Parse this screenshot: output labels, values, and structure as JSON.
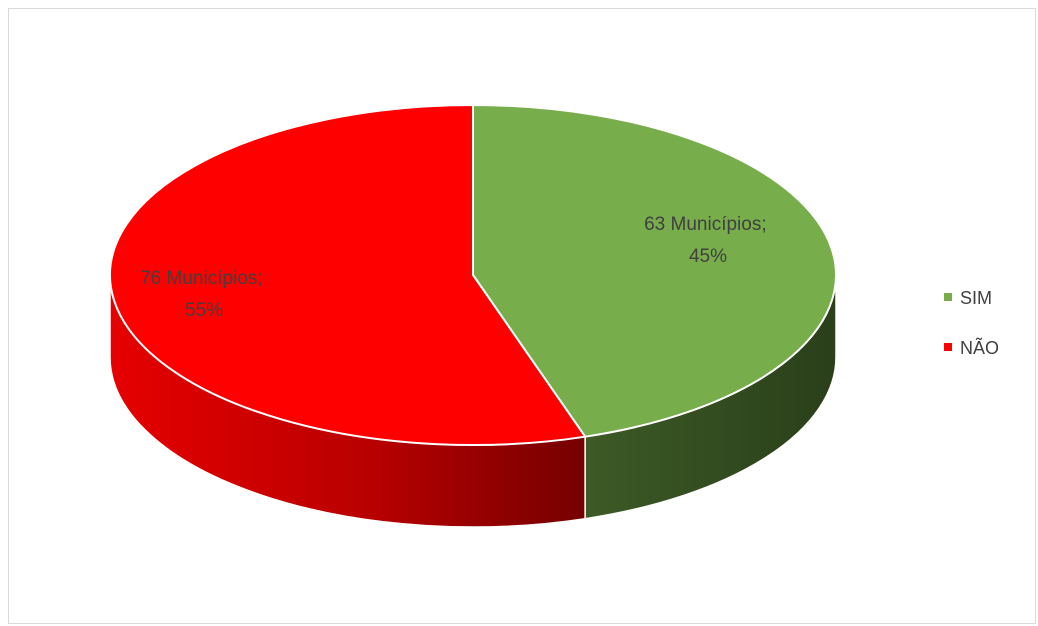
{
  "chart_data": {
    "type": "pie",
    "style": "3d",
    "title": "",
    "slices": [
      {
        "name": "SIM",
        "count": 63,
        "unit_label": "Municípios",
        "percent": 45,
        "color": "#77ad4b",
        "side_color": "#344c20"
      },
      {
        "name": "NÃO",
        "count": 76,
        "unit_label": "Municípios",
        "percent": 55,
        "color": "#ff0000",
        "side_color": "#b30000"
      }
    ],
    "data_labels": [
      {
        "line1": "63 Municípios;",
        "line2": "45%"
      },
      {
        "line1": "76 Municípios;",
        "line2": "55%"
      }
    ],
    "legend": {
      "placement": "right",
      "entries": [
        "SIM",
        "NÃO"
      ]
    }
  }
}
